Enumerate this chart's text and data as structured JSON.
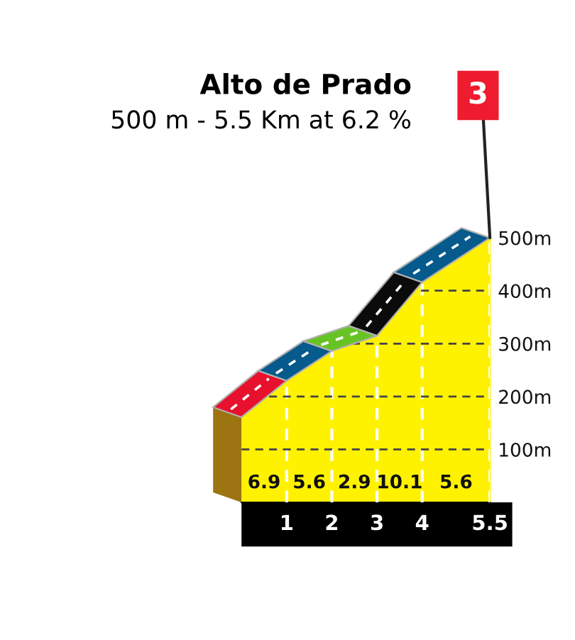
{
  "chart_data": {
    "type": "area",
    "title": "Alto de Prado",
    "subtitle": "500 m - 5.5 Km at 6.2 %",
    "series": [
      {
        "color": "#fff200",
        "x": [
          0,
          1,
          2,
          3,
          4,
          5.5
        ],
        "values": [
          161,
          230,
          286,
          315,
          416,
          500
        ]
      }
    ],
    "xlim": [
      0,
      5.5
    ],
    "xticks": [
      1,
      2,
      3,
      4,
      5.5
    ],
    "ylim": [
      0,
      520
    ],
    "yticks": [
      {
        "value": 100,
        "label": "100m"
      },
      {
        "value": 200,
        "label": "200m"
      },
      {
        "value": 300,
        "label": "300m"
      },
      {
        "value": 400,
        "label": "400m"
      },
      {
        "value": 500,
        "label": "500m"
      }
    ],
    "grid": true,
    "annotations": [
      "3",
      "6.9",
      "5.6",
      "2.9",
      "10.1",
      "5.6"
    ]
  }
}
